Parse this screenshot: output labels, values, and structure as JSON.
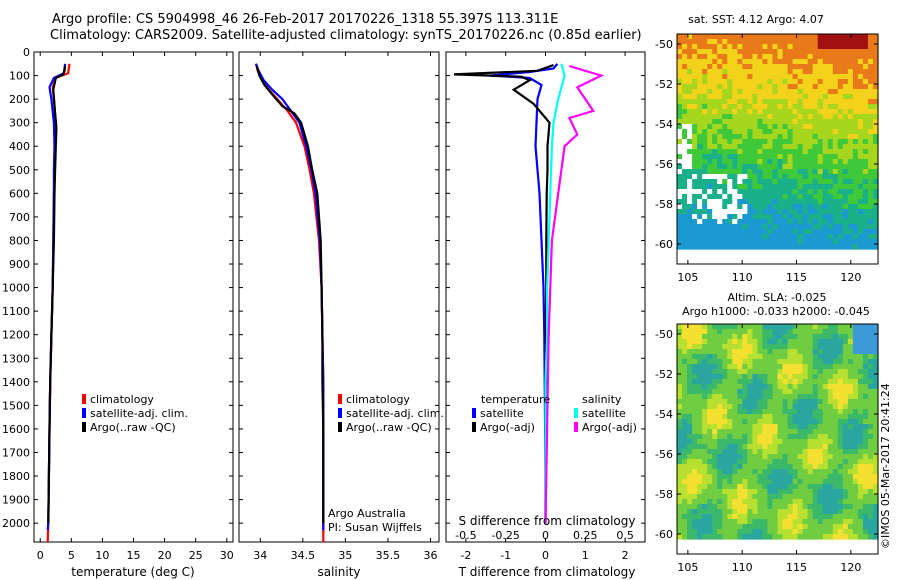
{
  "header": {
    "line1": "Argo profile: CS 5904998_46 26-Feb-2017 20170226_1318 55.397S 113.311E",
    "line2": "Climatology: CARS2009. Satellite-adjusted climatology: synTS_20170226.nc (0.85d earlier)"
  },
  "chart_data": [
    {
      "type": "line",
      "id": "temperature",
      "xlabel": "temperature (deg C)",
      "ylabel": "",
      "xlim": [
        -1,
        31
      ],
      "ylim": [
        2080,
        0
      ],
      "x_ticks": [
        0,
        5,
        10,
        15,
        20,
        25,
        30
      ],
      "x_tick_labels": [
        "0",
        "5",
        "10",
        "15",
        "20",
        "25",
        "30"
      ],
      "y_ticks": [
        0,
        100,
        200,
        300,
        400,
        500,
        600,
        700,
        800,
        900,
        1000,
        1100,
        1200,
        1300,
        1400,
        1500,
        1600,
        1700,
        1800,
        1900,
        2000
      ],
      "y_tick_labels": [
        "0",
        "100",
        "200",
        "300",
        "400",
        "500",
        "600",
        "700",
        "800",
        "900",
        "1000",
        "1100",
        "1200",
        "1300",
        "1400",
        "1500",
        "1600",
        "1700",
        "1800",
        "1900",
        "2000"
      ],
      "legend": [
        "climatology",
        "satellite-adj. clim.",
        "Argo(..raw -QC)"
      ],
      "series": [
        {
          "name": "climatology",
          "color": "#ff0000",
          "x": [
            4.7,
            4.6,
            4.5,
            2.5,
            2.0,
            2.2,
            2.5,
            2.4,
            2.3,
            2.2,
            2.1,
            2.0,
            1.8,
            1.6,
            1.5,
            1.4,
            1.3,
            1.2
          ],
          "y": [
            50,
            70,
            90,
            110,
            150,
            200,
            300,
            400,
            500,
            600,
            800,
            1000,
            1200,
            1400,
            1600,
            1800,
            2000,
            2080
          ]
        },
        {
          "name": "satellite-adj. clim.",
          "color": "#0000ff",
          "x": [
            4.0,
            3.9,
            3.8,
            2.2,
            1.5,
            1.8,
            2.2,
            2.3,
            2.2,
            2.2,
            2.1,
            2.0,
            1.8,
            1.6,
            1.5,
            1.4,
            1.3,
            1.2
          ],
          "y": [
            50,
            70,
            90,
            110,
            150,
            200,
            300,
            400,
            500,
            600,
            800,
            1000,
            1200,
            1400,
            1600,
            1800,
            2000,
            2030
          ]
        },
        {
          "name": "Argo(..raw -QC)",
          "color": "#000000",
          "x": [
            4.0,
            3.9,
            3.7,
            2.5,
            2.1,
            2.4,
            2.6,
            2.5,
            2.4,
            2.3,
            2.2,
            2.0,
            1.8,
            1.6,
            1.5,
            1.4,
            1.3
          ],
          "y": [
            60,
            80,
            95,
            110,
            160,
            260,
            320,
            400,
            500,
            600,
            800,
            1000,
            1200,
            1400,
            1600,
            1800,
            2000
          ]
        }
      ]
    },
    {
      "type": "line",
      "id": "salinity",
      "xlabel": "salinity",
      "xlim": [
        33.75,
        36.1
      ],
      "ylim": [
        2080,
        0
      ],
      "x_ticks": [
        34,
        34.5,
        35,
        35.5,
        36
      ],
      "x_tick_labels": [
        "34",
        "34.5",
        "35",
        "35.5",
        "36"
      ],
      "legend": [
        "climatology",
        "satellite-adj. clim.",
        "Argo(..raw -QC)"
      ],
      "annotation": [
        "Argo Australia",
        "PI: Susan Wijffels"
      ],
      "series": [
        {
          "name": "climatology",
          "color": "#ff0000",
          "x": [
            33.95,
            33.97,
            34.02,
            34.1,
            34.2,
            34.32,
            34.42,
            34.52,
            34.58,
            34.63,
            34.69,
            34.72,
            34.73,
            34.74,
            34.74,
            34.74,
            34.74,
            34.74
          ],
          "y": [
            50,
            80,
            120,
            160,
            200,
            250,
            300,
            400,
            500,
            600,
            800,
            1000,
            1200,
            1400,
            1600,
            1800,
            2000,
            2080
          ]
        },
        {
          "name": "satellite-adj. clim.",
          "color": "#0000ff",
          "x": [
            33.95,
            33.98,
            34.04,
            34.14,
            34.26,
            34.36,
            34.46,
            34.54,
            34.6,
            34.65,
            34.7,
            34.72,
            34.73,
            34.74,
            34.74,
            34.74,
            34.74,
            34.74
          ],
          "y": [
            50,
            80,
            120,
            160,
            200,
            250,
            300,
            400,
            500,
            600,
            800,
            1000,
            1200,
            1400,
            1600,
            1800,
            2000,
            2030
          ]
        },
        {
          "name": "Argo(..raw -QC)",
          "color": "#000000",
          "x": [
            33.96,
            33.99,
            34.05,
            34.14,
            34.26,
            34.4,
            34.48,
            34.56,
            34.61,
            34.67,
            34.71,
            34.72,
            34.73,
            34.73,
            34.74,
            34.74,
            34.74
          ],
          "y": [
            60,
            100,
            140,
            180,
            230,
            260,
            300,
            400,
            500,
            600,
            800,
            1000,
            1200,
            1400,
            1600,
            1800,
            2000
          ]
        }
      ]
    },
    {
      "type": "line",
      "id": "difference",
      "xlabel": "T difference from climatology",
      "top_xlabel": "S difference from climatology",
      "xlim": [
        -2.5,
        2.5
      ],
      "ylim": [
        2080,
        0
      ],
      "x_ticks": [
        -2,
        -1,
        0,
        1,
        2
      ],
      "x_tick_labels": [
        "-2",
        "-1",
        "0",
        "1",
        "2"
      ],
      "s_ticks": [
        -0.5,
        -0.25,
        0,
        0.25,
        0.5
      ],
      "s_tick_labels": [
        "-0.5",
        "-0.25",
        "0",
        "0.25",
        "0.5"
      ],
      "legend_temperature_title": "temperature",
      "legend_salinity_title": "salinity",
      "legend": [
        "satellite",
        "Argo(-adj)",
        "satellite",
        "Argo(-adj)"
      ],
      "series": [
        {
          "name": "T satellite",
          "color": "#0000ff",
          "x": [
            0.3,
            0.2,
            -0.4,
            -1.4,
            -0.4,
            -0.1,
            -0.2,
            -0.25,
            -0.2,
            -0.15,
            -0.1,
            -0.05,
            -0.03,
            -0.02,
            -0.01,
            0,
            0
          ],
          "y": [
            50,
            70,
            85,
            100,
            110,
            140,
            200,
            400,
            500,
            600,
            800,
            1000,
            1200,
            1400,
            1600,
            1800,
            2000
          ]
        },
        {
          "name": "T Argo(-adj)",
          "color": "#000000",
          "x": [
            0.2,
            -0.2,
            -2.3,
            -0.6,
            -0.4,
            -0.8,
            -0.3,
            0.1,
            0.05,
            0.05,
            0.03,
            0.02,
            0.02,
            0.01,
            0.01,
            0,
            0
          ],
          "y": [
            55,
            80,
            95,
            105,
            120,
            160,
            220,
            300,
            400,
            500,
            600,
            800,
            1000,
            1200,
            1400,
            1600,
            2000
          ]
        },
        {
          "name": "S satellite",
          "color": "#00ffff",
          "x": [
            0.1,
            0.12,
            0.08,
            0.05,
            0.04,
            0.03,
            0.02,
            0.01,
            0.01,
            0,
            0,
            0
          ],
          "y": [
            50,
            100,
            200,
            300,
            400,
            600,
            800,
            1000,
            1200,
            1400,
            1600,
            2000
          ]
        },
        {
          "name": "S Argo(-adj)",
          "color": "#ff00ff",
          "x": [
            0.15,
            0.35,
            0.2,
            0.3,
            0.15,
            0.2,
            0.12,
            0.1,
            0.08,
            0.06,
            0.04,
            0.03,
            0.02,
            0.01,
            0
          ],
          "y": [
            60,
            100,
            150,
            250,
            280,
            350,
            400,
            500,
            600,
            700,
            800,
            1000,
            1200,
            1600,
            2000
          ]
        }
      ]
    },
    {
      "type": "heatmap",
      "id": "sst_map",
      "title": "sat. SST: 4.12 Argo: 4.07",
      "xlim": [
        104,
        122.5
      ],
      "ylim": [
        -61,
        -49.5
      ],
      "x_ticks": [
        105,
        110,
        115,
        120
      ],
      "x_tick_labels": [
        "105",
        "110",
        "115",
        "120"
      ],
      "y_ticks": [
        -50,
        -52,
        -54,
        -56,
        -58,
        -60
      ],
      "y_tick_labels": [
        "-50",
        "-52",
        "-54",
        "-56",
        "-58",
        "-60"
      ]
    },
    {
      "type": "heatmap",
      "id": "sla_map",
      "title": "Altim. SLA: -0.025",
      "subtitle": "Argo h1000: -0.033 h2000: -0.045",
      "xlim": [
        104,
        122.5
      ],
      "ylim": [
        -61,
        -49.5
      ],
      "x_ticks": [
        105,
        110,
        115,
        120
      ],
      "x_tick_labels": [
        "105",
        "110",
        "115",
        "120"
      ],
      "y_ticks": [
        -50,
        -52,
        -54,
        -56,
        -58,
        -60
      ],
      "y_tick_labels": [
        "-50",
        "-52",
        "-54",
        "-56",
        "-58",
        "-60"
      ]
    }
  ],
  "footer": {
    "credit": "©IMOS 05-Mar-2017 20:41:24"
  }
}
